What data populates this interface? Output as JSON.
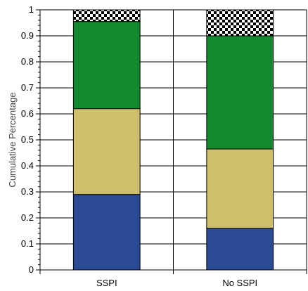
{
  "chart_data": {
    "type": "bar",
    "stacked": true,
    "categories": [
      "SSPI",
      "No SSPI"
    ],
    "series": [
      {
        "color": "#2a4b94",
        "values": [
          0.29,
          0.16
        ]
      },
      {
        "color": "#cdbf6b",
        "values": [
          0.33,
          0.305
        ]
      },
      {
        "color": "#138a2f",
        "values": [
          0.335,
          0.435
        ]
      },
      {
        "pattern": "checkerboard",
        "color": "#000000",
        "values": [
          0.045,
          0.1
        ]
      }
    ],
    "ylabel": "Cumulative Percentage",
    "xlabel": "",
    "ylim": [
      0,
      1
    ],
    "yticks": [
      "0",
      "0.1",
      "0.2",
      "0.3",
      "0.4",
      "0.5",
      "0.6",
      "0.7",
      "0.8",
      "0.9",
      "1"
    ],
    "grid": true
  }
}
